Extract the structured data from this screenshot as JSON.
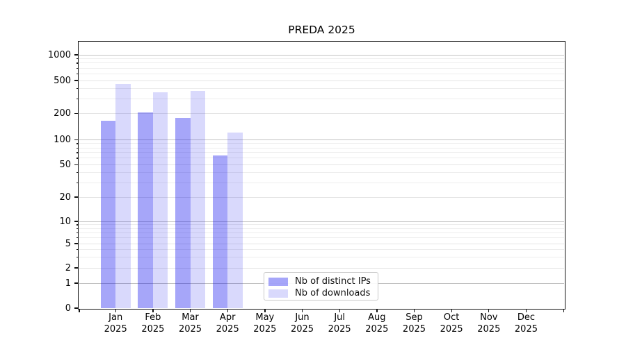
{
  "title": "PREDA 2025",
  "axes": {
    "y_tick_labels": [
      "0",
      "1",
      "2",
      "5",
      "10",
      "20",
      "50",
      "100",
      "200",
      "500",
      "1000"
    ],
    "months": [
      "Jan",
      "Feb",
      "Mar",
      "Apr",
      "May",
      "Jun",
      "Jul",
      "Aug",
      "Sep",
      "Oct",
      "Nov",
      "Dec"
    ],
    "year": "2025"
  },
  "legend": {
    "items": [
      {
        "label": "Nb of distinct IPs",
        "color": "rgba(0,0,238,0.35)"
      },
      {
        "label": "Nb of downloads",
        "color": "rgba(0,0,238,0.15)"
      }
    ]
  },
  "chart_data": {
    "type": "bar",
    "title": "PREDA 2025",
    "categories": [
      "Jan 2025",
      "Feb 2025",
      "Mar 2025",
      "Apr 2025",
      "May 2025",
      "Jun 2025",
      "Jul 2025",
      "Aug 2025",
      "Sep 2025",
      "Oct 2025",
      "Nov 2025",
      "Dec 2025"
    ],
    "series": [
      {
        "name": "Nb of distinct IPs",
        "color": "rgba(0,0,238,0.35)",
        "values": [
          165,
          205,
          177,
          65,
          null,
          null,
          null,
          null,
          null,
          null,
          null,
          null
        ]
      },
      {
        "name": "Nb of downloads",
        "color": "rgba(0,0,238,0.15)",
        "values": [
          455,
          358,
          373,
          122,
          null,
          null,
          null,
          null,
          null,
          null,
          null,
          null
        ]
      }
    ],
    "yscale": "asinh-log (symmetric log including 0)",
    "y_tick_values": [
      0,
      1,
      2,
      5,
      10,
      20,
      50,
      100,
      200,
      500,
      1000
    ],
    "ylim": [
      0,
      1400
    ],
    "grid": "both major and minor horizontal gridlines",
    "legend_position": "lower center inside plot"
  }
}
